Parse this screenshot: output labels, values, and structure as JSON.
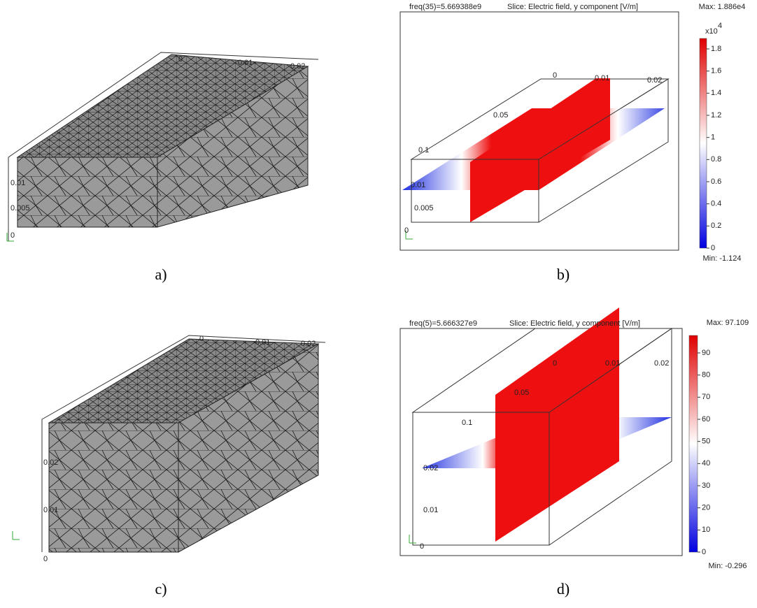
{
  "panels": [
    {
      "label": "a)",
      "axis_labels": [
        "0",
        "0.01",
        "0.02",
        "0.01",
        "0.005",
        "0"
      ]
    },
    {
      "label": "b)",
      "freq": "freq(35)=5.669388e9",
      "title": "Slice: Electric field, y component [V/m]",
      "max": "Max: 1.886e4",
      "min": "Min: -1.124",
      "scale": "x10",
      "exponent": "4",
      "colorbar_ticks": [
        "1.8",
        "1.6",
        "1.4",
        "1.2",
        "1",
        "0.8",
        "0.6",
        "0.4",
        "0.2",
        "0"
      ],
      "axis_labels": [
        "0",
        "0.01",
        "0.02",
        "0.05",
        "0.1",
        "0.01",
        "0.005",
        "0"
      ]
    },
    {
      "label": "c)",
      "axis_labels": [
        "0",
        "0.01",
        "0.02",
        "0.02",
        "0.01",
        "0"
      ]
    },
    {
      "label": "d)",
      "freq": "freq(5)=5.666327e9",
      "title": "Slice: Electric field, y component [V/m]",
      "max": "Max: 97.109",
      "min": "Min: -0.296",
      "colorbar_ticks": [
        "90",
        "80",
        "70",
        "60",
        "50",
        "40",
        "30",
        "20",
        "10",
        "0"
      ],
      "axis_labels": [
        "0",
        "0.01",
        "0.02",
        "0.05",
        "0.1",
        "0.02",
        "0.01",
        "0"
      ]
    }
  ]
}
